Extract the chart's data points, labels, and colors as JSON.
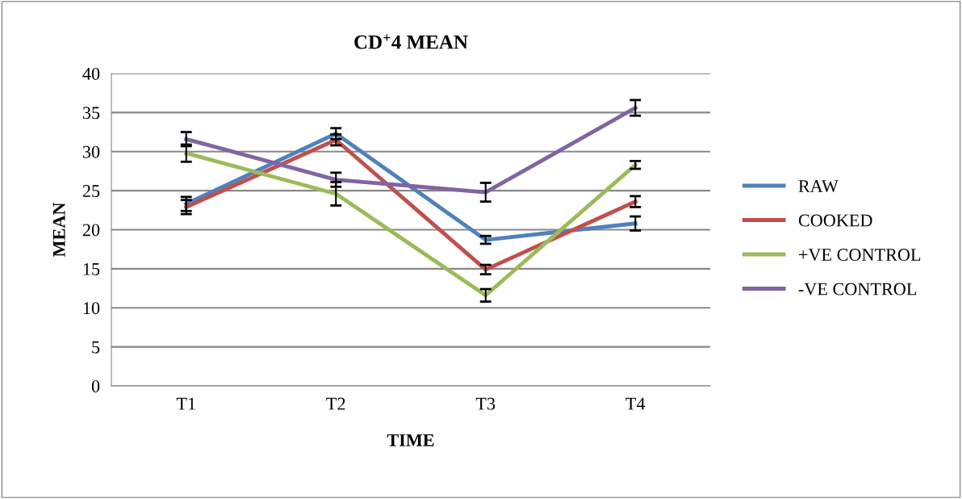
{
  "chart_data": {
    "type": "line",
    "title": "CD$^{+}$4 MEAN",
    "xlabel": "TIME",
    "ylabel": "MEAN",
    "categories": [
      "T1",
      "T2",
      "T3",
      "T4"
    ],
    "series": [
      {
        "name": "RAW",
        "color": "#4f81bd",
        "values": [
          23.3,
          32.3,
          18.7,
          20.8
        ],
        "errors": [
          0.9,
          0.7,
          0.5,
          0.9
        ]
      },
      {
        "name": "COOKED",
        "color": "#c0504d",
        "values": [
          22.9,
          31.5,
          14.9,
          23.6
        ],
        "errors": [
          0.9,
          0.7,
          0.6,
          0.7
        ]
      },
      {
        "name": "+VE CONTROL",
        "color": "#9bbb59",
        "values": [
          29.8,
          24.6,
          11.6,
          28.3
        ],
        "errors": [
          1.1,
          1.5,
          0.8,
          0.5
        ]
      },
      {
        "name": "-VE CONTROL",
        "color": "#8064a2",
        "values": [
          31.6,
          26.4,
          24.8,
          35.6
        ],
        "errors": [
          0.9,
          0.9,
          1.2,
          1.0
        ]
      }
    ],
    "ylim": [
      0,
      40
    ],
    "yticks": [
      0,
      5,
      10,
      15,
      20,
      25,
      30,
      35,
      40
    ],
    "grid": "y",
    "legend": "right",
    "marker": "none",
    "line_style": "solid"
  }
}
